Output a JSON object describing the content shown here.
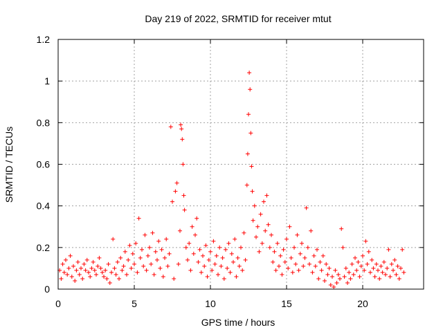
{
  "chart_data": {
    "type": "scatter",
    "title": "Day 219 of 2022, SRMTID for receiver mtut",
    "xlabel": "GPS time / hours",
    "ylabel": "SRMTID / TECUs",
    "xlim": [
      0,
      24
    ],
    "ylim": [
      0,
      1.2
    ],
    "xticks": [
      0,
      5,
      10,
      15,
      20
    ],
    "yticks": [
      0,
      0.2,
      0.4,
      0.6,
      0.8,
      1,
      1.2
    ],
    "xtick_labels": [
      "0",
      "5",
      "10",
      "15",
      "20"
    ],
    "ytick_labels": [
      "0",
      "0.2",
      "0.4",
      "0.6",
      "0.8",
      "1",
      "1.2"
    ],
    "grid": true,
    "marker": "+",
    "series": [
      {
        "name": "SRMTID",
        "color": "#ff0000",
        "points": [
          [
            0.1,
            0.09
          ],
          [
            0.2,
            0.05
          ],
          [
            0.3,
            0.12
          ],
          [
            0.4,
            0.08
          ],
          [
            0.5,
            0.14
          ],
          [
            0.6,
            0.07
          ],
          [
            0.7,
            0.1
          ],
          [
            0.8,
            0.16
          ],
          [
            0.9,
            0.06
          ],
          [
            1.0,
            0.11
          ],
          [
            1.1,
            0.04
          ],
          [
            1.2,
            0.09
          ],
          [
            1.3,
            0.13
          ],
          [
            1.4,
            0.07
          ],
          [
            1.5,
            0.1
          ],
          [
            1.6,
            0.05
          ],
          [
            1.7,
            0.12
          ],
          [
            1.8,
            0.09
          ],
          [
            1.9,
            0.14
          ],
          [
            2.0,
            0.08
          ],
          [
            2.1,
            0.06
          ],
          [
            2.2,
            0.1
          ],
          [
            2.3,
            0.13
          ],
          [
            2.4,
            0.09
          ],
          [
            2.5,
            0.07
          ],
          [
            2.6,
            0.11
          ],
          [
            2.7,
            0.15
          ],
          [
            2.8,
            0.1
          ],
          [
            2.9,
            0.08
          ],
          [
            3.0,
            0.06
          ],
          [
            3.1,
            0.09
          ],
          [
            3.2,
            0.05
          ],
          [
            3.3,
            0.12
          ],
          [
            3.4,
            0.03
          ],
          [
            3.5,
            0.08
          ],
          [
            3.6,
            0.24
          ],
          [
            3.7,
            0.1
          ],
          [
            3.8,
            0.07
          ],
          [
            3.9,
            0.13
          ],
          [
            4.0,
            0.05
          ],
          [
            4.1,
            0.15
          ],
          [
            4.2,
            0.09
          ],
          [
            4.3,
            0.11
          ],
          [
            4.4,
            0.18
          ],
          [
            4.5,
            0.07
          ],
          [
            4.6,
            0.14
          ],
          [
            4.7,
            0.21
          ],
          [
            4.8,
            0.1
          ],
          [
            4.9,
            0.17
          ],
          [
            5.0,
            0.12
          ],
          [
            5.1,
            0.22
          ],
          [
            5.2,
            0.08
          ],
          [
            5.3,
            0.34
          ],
          [
            5.4,
            0.15
          ],
          [
            5.5,
            0.19
          ],
          [
            5.6,
            0.11
          ],
          [
            5.7,
            0.26
          ],
          [
            5.8,
            0.09
          ],
          [
            5.9,
            0.16
          ],
          [
            6.0,
            0.2
          ],
          [
            6.1,
            0.12
          ],
          [
            6.2,
            0.27
          ],
          [
            6.3,
            0.07
          ],
          [
            6.4,
            0.18
          ],
          [
            6.5,
            0.14
          ],
          [
            6.6,
            0.23
          ],
          [
            6.7,
            0.1
          ],
          [
            6.8,
            0.19
          ],
          [
            6.9,
            0.06
          ],
          [
            7.0,
            0.15
          ],
          [
            7.1,
            0.24
          ],
          [
            7.2,
            0.11
          ],
          [
            7.3,
            0.17
          ],
          [
            7.4,
            0.78
          ],
          [
            7.5,
            0.42
          ],
          [
            7.6,
            0.05
          ],
          [
            7.7,
            0.47
          ],
          [
            7.8,
            0.51
          ],
          [
            7.9,
            0.12
          ],
          [
            8.0,
            0.28
          ],
          [
            8.05,
            0.79
          ],
          [
            8.1,
            0.77
          ],
          [
            8.15,
            0.72
          ],
          [
            8.2,
            0.6
          ],
          [
            8.25,
            0.45
          ],
          [
            8.3,
            0.38
          ],
          [
            8.4,
            0.2
          ],
          [
            8.5,
            0.14
          ],
          [
            8.6,
            0.22
          ],
          [
            8.7,
            0.09
          ],
          [
            8.8,
            0.3
          ],
          [
            8.9,
            0.17
          ],
          [
            9.0,
            0.26
          ],
          [
            9.1,
            0.34
          ],
          [
            9.2,
            0.13
          ],
          [
            9.3,
            0.19
          ],
          [
            9.4,
            0.08
          ],
          [
            9.5,
            0.16
          ],
          [
            9.6,
            0.11
          ],
          [
            9.7,
            0.21
          ],
          [
            9.8,
            0.06
          ],
          [
            9.9,
            0.14
          ],
          [
            10.0,
            0.18
          ],
          [
            10.1,
            0.09
          ],
          [
            10.2,
            0.23
          ],
          [
            10.3,
            0.12
          ],
          [
            10.4,
            0.16
          ],
          [
            10.5,
            0.07
          ],
          [
            10.6,
            0.2
          ],
          [
            10.7,
            0.11
          ],
          [
            10.8,
            0.15
          ],
          [
            10.9,
            0.05
          ],
          [
            11.0,
            0.19
          ],
          [
            11.1,
            0.1
          ],
          [
            11.2,
            0.22
          ],
          [
            11.3,
            0.08
          ],
          [
            11.4,
            0.17
          ],
          [
            11.5,
            0.13
          ],
          [
            11.6,
            0.24
          ],
          [
            11.7,
            0.06
          ],
          [
            11.8,
            0.15
          ],
          [
            11.9,
            0.11
          ],
          [
            12.0,
            0.2
          ],
          [
            12.1,
            0.09
          ],
          [
            12.2,
            0.27
          ],
          [
            12.3,
            0.14
          ],
          [
            12.4,
            0.5
          ],
          [
            12.45,
            0.65
          ],
          [
            12.5,
            0.84
          ],
          [
            12.55,
            1.04
          ],
          [
            12.6,
            0.96
          ],
          [
            12.65,
            0.75
          ],
          [
            12.7,
            0.59
          ],
          [
            12.75,
            0.47
          ],
          [
            12.8,
            0.33
          ],
          [
            12.9,
            0.4
          ],
          [
            13.0,
            0.25
          ],
          [
            13.1,
            0.3
          ],
          [
            13.2,
            0.18
          ],
          [
            13.3,
            0.36
          ],
          [
            13.4,
            0.22
          ],
          [
            13.5,
            0.42
          ],
          [
            13.6,
            0.28
          ],
          [
            13.7,
            0.45
          ],
          [
            13.8,
            0.31
          ],
          [
            13.9,
            0.2
          ],
          [
            14.0,
            0.26
          ],
          [
            14.1,
            0.13
          ],
          [
            14.2,
            0.18
          ],
          [
            14.3,
            0.09
          ],
          [
            14.4,
            0.22
          ],
          [
            14.5,
            0.11
          ],
          [
            14.6,
            0.16
          ],
          [
            14.7,
            0.07
          ],
          [
            14.8,
            0.19
          ],
          [
            14.9,
            0.13
          ],
          [
            15.0,
            0.24
          ],
          [
            15.1,
            0.1
          ],
          [
            15.2,
            0.3
          ],
          [
            15.3,
            0.15
          ],
          [
            15.4,
            0.08
          ],
          [
            15.5,
            0.2
          ],
          [
            15.6,
            0.12
          ],
          [
            15.7,
            0.26
          ],
          [
            15.8,
            0.09
          ],
          [
            15.9,
            0.17
          ],
          [
            16.0,
            0.22
          ],
          [
            16.1,
            0.11
          ],
          [
            16.2,
            0.15
          ],
          [
            16.3,
            0.39
          ],
          [
            16.4,
            0.2
          ],
          [
            16.5,
            0.12
          ],
          [
            16.6,
            0.28
          ],
          [
            16.7,
            0.08
          ],
          [
            16.8,
            0.16
          ],
          [
            16.9,
            0.11
          ],
          [
            17.0,
            0.19
          ],
          [
            17.1,
            0.05
          ],
          [
            17.2,
            0.13
          ],
          [
            17.3,
            0.09
          ],
          [
            17.4,
            0.16
          ],
          [
            17.5,
            0.04
          ],
          [
            17.6,
            0.12
          ],
          [
            17.7,
            0.07
          ],
          [
            17.8,
            0.1
          ],
          [
            17.9,
            0.02
          ],
          [
            18.0,
            0.06
          ],
          [
            18.1,
            0.01
          ],
          [
            18.2,
            0.09
          ],
          [
            18.3,
            0.03
          ],
          [
            18.4,
            0.07
          ],
          [
            18.5,
            0.05
          ],
          [
            18.6,
            0.29
          ],
          [
            18.7,
            0.2
          ],
          [
            18.8,
            0.06
          ],
          [
            18.9,
            0.1
          ],
          [
            19.0,
            0.03
          ],
          [
            19.1,
            0.08
          ],
          [
            19.2,
            0.05
          ],
          [
            19.3,
            0.12
          ],
          [
            19.4,
            0.07
          ],
          [
            19.5,
            0.15
          ],
          [
            19.6,
            0.09
          ],
          [
            19.7,
            0.13
          ],
          [
            19.8,
            0.06
          ],
          [
            19.9,
            0.11
          ],
          [
            20.0,
            0.16
          ],
          [
            20.1,
            0.09
          ],
          [
            20.2,
            0.23
          ],
          [
            20.3,
            0.12
          ],
          [
            20.4,
            0.18
          ],
          [
            20.5,
            0.08
          ],
          [
            20.6,
            0.14
          ],
          [
            20.7,
            0.1
          ],
          [
            20.8,
            0.06
          ],
          [
            20.9,
            0.12
          ],
          [
            21.0,
            0.09
          ],
          [
            21.1,
            0.05
          ],
          [
            21.2,
            0.11
          ],
          [
            21.3,
            0.08
          ],
          [
            21.4,
            0.13
          ],
          [
            21.5,
            0.07
          ],
          [
            21.6,
            0.1
          ],
          [
            21.7,
            0.19
          ],
          [
            21.8,
            0.06
          ],
          [
            21.9,
            0.12
          ],
          [
            22.0,
            0.09
          ],
          [
            22.1,
            0.14
          ],
          [
            22.2,
            0.07
          ],
          [
            22.3,
            0.11
          ],
          [
            22.4,
            0.05
          ],
          [
            22.5,
            0.1
          ],
          [
            22.6,
            0.19
          ],
          [
            22.7,
            0.08
          ]
        ]
      }
    ]
  }
}
